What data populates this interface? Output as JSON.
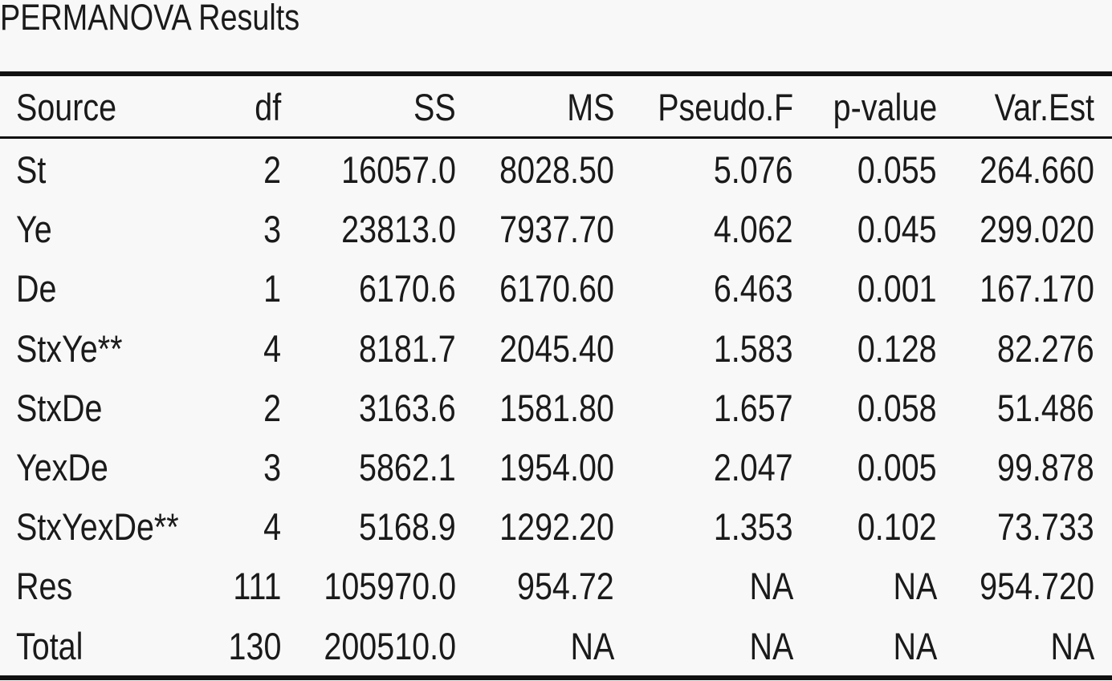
{
  "title": "PERMANOVA Results",
  "table": {
    "header": [
      "Source",
      "df",
      "SS",
      "MS",
      "Pseudo.F",
      "p-value",
      "Var.Est"
    ],
    "rows": [
      [
        "St",
        "2",
        "16057.0",
        "8028.50",
        "5.076",
        "0.055",
        "264.660"
      ],
      [
        "Ye",
        "3",
        "23813.0",
        "7937.70",
        "4.062",
        "0.045",
        "299.020"
      ],
      [
        "De",
        "1",
        "6170.6",
        "6170.60",
        "6.463",
        "0.001",
        "167.170"
      ],
      [
        "StxYe**",
        "4",
        "8181.7",
        "2045.40",
        "1.583",
        "0.128",
        "82.276"
      ],
      [
        "StxDe",
        "2",
        "3163.6",
        "1581.80",
        "1.657",
        "0.058",
        "51.486"
      ],
      [
        "YexDe",
        "3",
        "5862.1",
        "1954.00",
        "2.047",
        "0.005",
        "99.878"
      ],
      [
        "StxYexDe**",
        "4",
        "5168.9",
        "1292.20",
        "1.353",
        "0.102",
        "73.733"
      ],
      [
        "Res",
        "111",
        "105970.0",
        "954.72",
        "NA",
        "NA",
        "954.720"
      ],
      [
        "Total",
        "130",
        "200510.0",
        "NA",
        "NA",
        "NA",
        "NA"
      ]
    ]
  }
}
